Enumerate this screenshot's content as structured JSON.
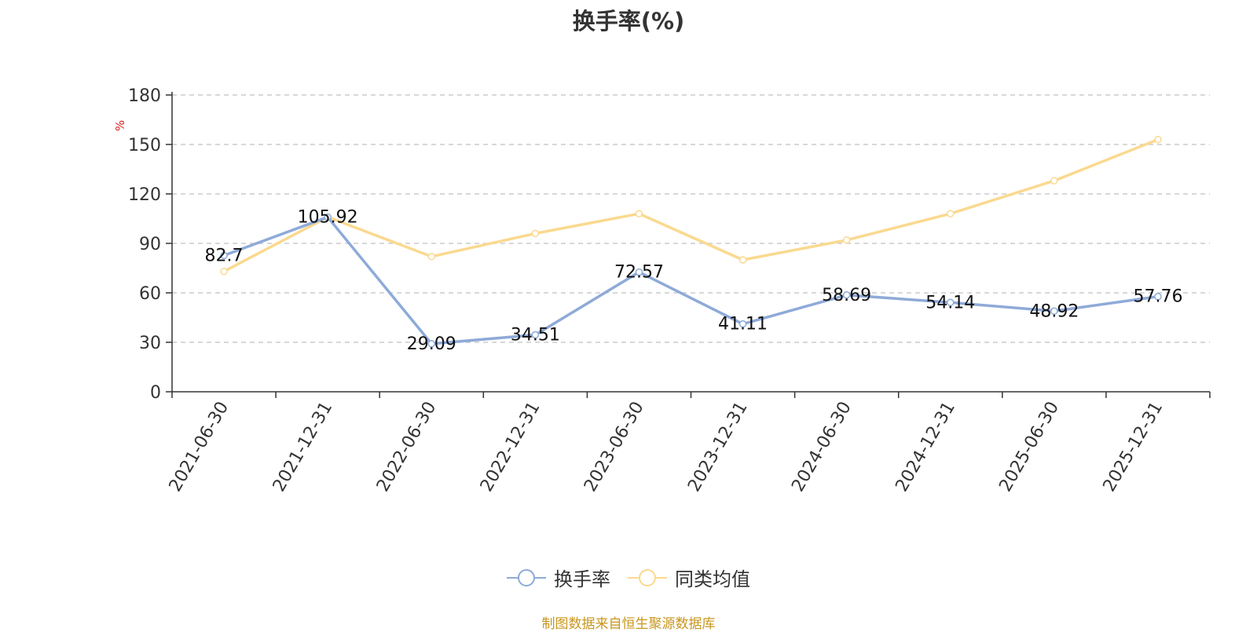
{
  "chart_data": {
    "type": "line",
    "title": "换手率(%)",
    "ylabel": "%",
    "xlabel": "",
    "ylim": [
      0,
      180
    ],
    "yticks": [
      0,
      30,
      60,
      90,
      120,
      150,
      180
    ],
    "grid": true,
    "legend_position": "bottom-center",
    "categories": [
      "2021-06-30",
      "2021-12-31",
      "2022-06-30",
      "2022-12-31",
      "2023-06-30",
      "2023-12-31",
      "2024-06-30",
      "2024-12-31",
      "2025-06-30",
      "2025-12-31"
    ],
    "series": [
      {
        "name": "换手率",
        "color": "#8eaad8",
        "show_labels": true,
        "values": [
          82.7,
          105.92,
          29.09,
          34.51,
          72.57,
          41.11,
          58.69,
          54.14,
          48.92,
          57.76
        ]
      },
      {
        "name": "同类均值",
        "color": "#fad98f",
        "show_labels": false,
        "values": [
          73,
          106,
          82,
          96,
          108,
          80,
          92,
          108,
          128,
          153
        ]
      }
    ]
  },
  "source_note": "制图数据来自恒生聚源数据库",
  "colors": {
    "axis": "#333333",
    "grid": "#cccccc",
    "ylabel": "#e02020",
    "source": "#c8961e"
  }
}
